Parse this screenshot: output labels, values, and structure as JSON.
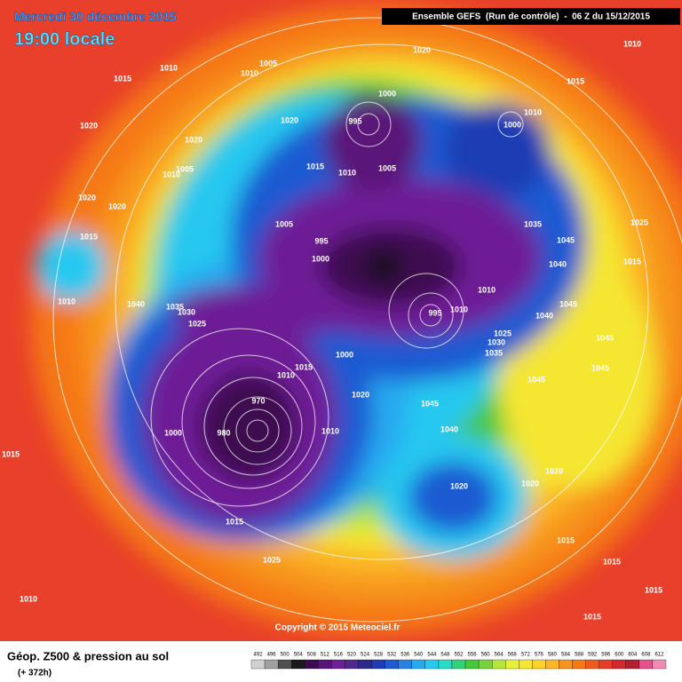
{
  "header": {
    "date": "Mercredi 30 décembre 2015",
    "time": "19:00 locale",
    "run": "Ensemble GEFS  (Run de contrôle)  -  06 Z du 15/12/2015"
  },
  "copyright": "Copyright © 2015 Meteociel.fr",
  "footer": {
    "title": "Géop. Z500 & pression au sol",
    "lead": "(+ 372h)"
  },
  "scale": {
    "labels": [
      492,
      496,
      500,
      504,
      508,
      512,
      516,
      520,
      524,
      528,
      532,
      536,
      540,
      544,
      548,
      552,
      556,
      560,
      564,
      568,
      572,
      576,
      580,
      584,
      588,
      592,
      596,
      600,
      604,
      608,
      612
    ],
    "colors": [
      "#d0d0d0",
      "#a0a0a0",
      "#505050",
      "#1a1a1a",
      "#3c0a50",
      "#5a1478",
      "#6e1e96",
      "#50288c",
      "#2a2a8c",
      "#1e3cb4",
      "#1e5ad2",
      "#2882e6",
      "#28aaf0",
      "#28c8f0",
      "#28dcc8",
      "#32d278",
      "#46c83c",
      "#78d23c",
      "#b4e63c",
      "#e6f03c",
      "#f5e632",
      "#fad228",
      "#fcb428",
      "#f7941d",
      "#f57814",
      "#f05a1e",
      "#e63c28",
      "#d2282d",
      "#b41e32",
      "#e6508c",
      "#f08cb4"
    ]
  },
  "isobar_labels": [
    1010,
    1015,
    1005,
    1010,
    1020,
    1010,
    1015,
    1020,
    1020,
    1020,
    1000,
    995,
    1000,
    1010,
    1015,
    1010,
    1005,
    1005,
    1010,
    1020,
    1020,
    1015,
    1005,
    995,
    1000,
    1035,
    1045,
    1025,
    1015,
    1040,
    1010,
    1010,
    1040,
    1035,
    1030,
    1025,
    995,
    1010,
    1040,
    1045,
    1025,
    1030,
    1035,
    1045,
    1000,
    1015,
    1010,
    1045,
    1020,
    1045,
    1045,
    970,
    980,
    1000,
    1010,
    1040,
    1015,
    1020,
    1020,
    1020,
    1015,
    1015,
    1025,
    1015,
    1010,
    1015,
    1015
  ]
}
